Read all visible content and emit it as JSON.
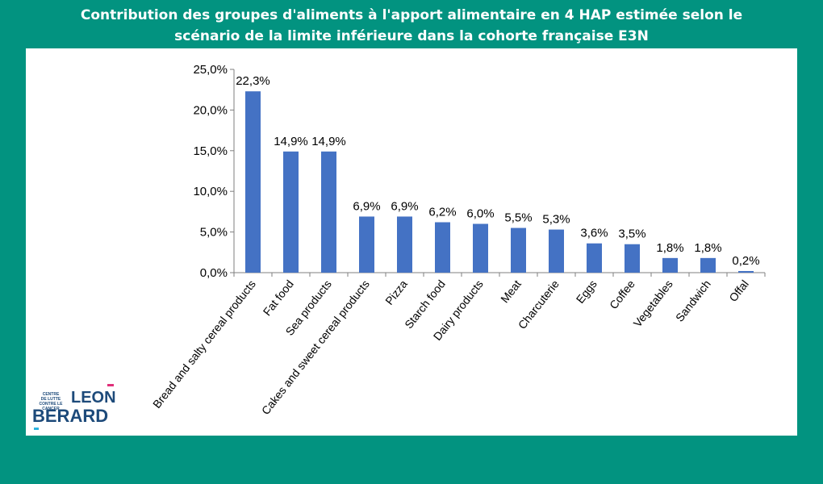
{
  "header": {
    "title_line1": "Contribution des groupes d'aliments à l'apport alimentaire en 4 HAP estimée selon le",
    "title_line2": "scénario de la limite inférieure dans la cohorte française E3N"
  },
  "logo": {
    "small_text_1": "CENTRE",
    "small_text_2": "DE LUTTE",
    "small_text_3": "CONTRE LE CANCER",
    "name_1": "LEON",
    "name_2": "BERARD"
  },
  "colors": {
    "background": "#029380",
    "bar": "#4472c4",
    "panel": "#ffffff"
  },
  "chart_data": {
    "type": "bar",
    "categories": [
      "Bread and salty cereal products",
      "Fat food",
      "Sea products",
      "Cakes and sweet cereal products",
      "Pizza",
      "Starch food",
      "Dairy products",
      "Meat",
      "Charcuterie",
      "Eggs",
      "Coffee",
      "Vegetables",
      "Sandwich",
      "Offal"
    ],
    "values": [
      22.3,
      14.9,
      14.9,
      6.9,
      6.9,
      6.2,
      6.0,
      5.5,
      5.3,
      3.6,
      3.5,
      1.8,
      1.8,
      0.2
    ],
    "data_labels": [
      "22,3%",
      "14,9%",
      "14,9%",
      "6,9%",
      "6,9%",
      "6,2%",
      "6,0%",
      "5,5%",
      "5,3%",
      "3,6%",
      "3,5%",
      "1,8%",
      "1,8%",
      "0,2%"
    ],
    "y_ticks": [
      "0,0%",
      "5,0%",
      "10,0%",
      "15,0%",
      "20,0%",
      "25,0%"
    ],
    "ylim": [
      0,
      25
    ],
    "grid": false,
    "legend": "none"
  }
}
